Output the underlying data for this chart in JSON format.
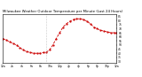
{
  "title": "Milwaukee Weather Outdoor Temperature per Minute (Last 24 Hours)",
  "background_color": "#ffffff",
  "plot_bg_color": "#ffffff",
  "line_color": "#cc0000",
  "line_style": "--",
  "line_width": 0.6,
  "marker": ".",
  "marker_size": 1.2,
  "ylim": [
    28,
    88
  ],
  "yticks": [
    30,
    35,
    40,
    45,
    50,
    55,
    60,
    65,
    70,
    75,
    80,
    85
  ],
  "ytick_labels": [
    "30",
    "35",
    "40",
    "45",
    "50",
    "55",
    "60",
    "65",
    "70",
    "75",
    "80",
    "85"
  ],
  "vline_x": 0.38,
  "vline_color": "#999999",
  "vline_style": ":",
  "title_fontsize": 2.8,
  "tick_fontsize": 2.2,
  "x_data": [
    0.0,
    0.03,
    0.06,
    0.09,
    0.12,
    0.15,
    0.18,
    0.21,
    0.24,
    0.27,
    0.3,
    0.33,
    0.36,
    0.38,
    0.41,
    0.44,
    0.47,
    0.5,
    0.53,
    0.56,
    0.59,
    0.62,
    0.65,
    0.68,
    0.71,
    0.74,
    0.77,
    0.8,
    0.83,
    0.86,
    0.89,
    0.92,
    0.95,
    0.98,
    1.0
  ],
  "y_data": [
    58,
    56,
    54,
    52,
    50,
    47,
    44,
    42,
    41,
    40,
    40,
    40,
    41,
    41,
    44,
    50,
    58,
    65,
    72,
    76,
    79,
    81,
    82,
    82,
    81,
    79,
    76,
    72,
    70,
    68,
    67,
    66,
    65,
    65,
    65
  ],
  "xtick_positions": [
    0.0,
    0.083,
    0.167,
    0.25,
    0.333,
    0.417,
    0.5,
    0.583,
    0.667,
    0.75,
    0.833,
    0.917,
    1.0
  ],
  "xtick_labels": [
    "12a",
    "2a",
    "4a",
    "6a",
    "8a",
    "10a",
    "12p",
    "2p",
    "4p",
    "6p",
    "8p",
    "10p",
    "12a"
  ]
}
